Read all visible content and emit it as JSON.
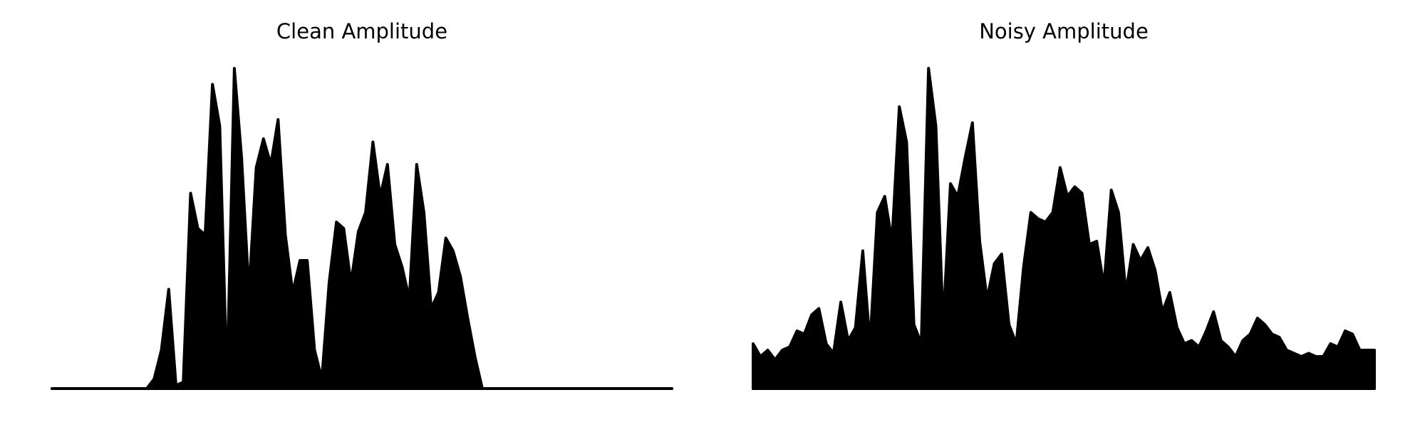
{
  "chart_data": [
    {
      "type": "area",
      "title": "Clean Amplitude",
      "color": "#000000",
      "values": [
        0,
        0,
        0,
        0,
        0,
        0,
        0,
        0,
        0,
        0,
        0,
        0,
        0,
        0,
        0.03,
        0.12,
        0.31,
        0.01,
        0.02,
        0.61,
        0.5,
        0.48,
        0.95,
        0.82,
        0.02,
        1.0,
        0.72,
        0.3,
        0.69,
        0.78,
        0.7,
        0.84,
        0.48,
        0.3,
        0.4,
        0.4,
        0.12,
        0.03,
        0.33,
        0.52,
        0.5,
        0.33,
        0.49,
        0.55,
        0.77,
        0.6,
        0.7,
        0.45,
        0.38,
        0.28,
        0.7,
        0.55,
        0.25,
        0.3,
        0.47,
        0.43,
        0.35,
        0.22,
        0.1,
        0,
        0,
        0,
        0,
        0,
        0,
        0,
        0,
        0,
        0,
        0,
        0,
        0,
        0,
        0,
        0,
        0,
        0,
        0,
        0,
        0,
        0,
        0,
        0,
        0,
        0,
        0
      ]
    },
    {
      "type": "area",
      "title": "Noisy Amplitude",
      "color": "#000000",
      "values": [
        0.14,
        0.1,
        0.12,
        0.09,
        0.12,
        0.13,
        0.18,
        0.17,
        0.23,
        0.25,
        0.14,
        0.11,
        0.27,
        0.15,
        0.19,
        0.43,
        0.14,
        0.55,
        0.6,
        0.46,
        0.88,
        0.77,
        0.2,
        0.14,
        1.0,
        0.82,
        0.2,
        0.64,
        0.6,
        0.72,
        0.83,
        0.46,
        0.28,
        0.39,
        0.42,
        0.2,
        0.14,
        0.38,
        0.55,
        0.53,
        0.52,
        0.55,
        0.69,
        0.6,
        0.63,
        0.61,
        0.45,
        0.46,
        0.32,
        0.62,
        0.55,
        0.3,
        0.45,
        0.4,
        0.44,
        0.37,
        0.24,
        0.3,
        0.19,
        0.14,
        0.15,
        0.13,
        0.18,
        0.24,
        0.15,
        0.13,
        0.1,
        0.15,
        0.17,
        0.22,
        0.2,
        0.17,
        0.16,
        0.12,
        0.11,
        0.1,
        0.11,
        0.1,
        0.1,
        0.14,
        0.13,
        0.18,
        0.17,
        0.12,
        0.12,
        0.12
      ]
    }
  ]
}
